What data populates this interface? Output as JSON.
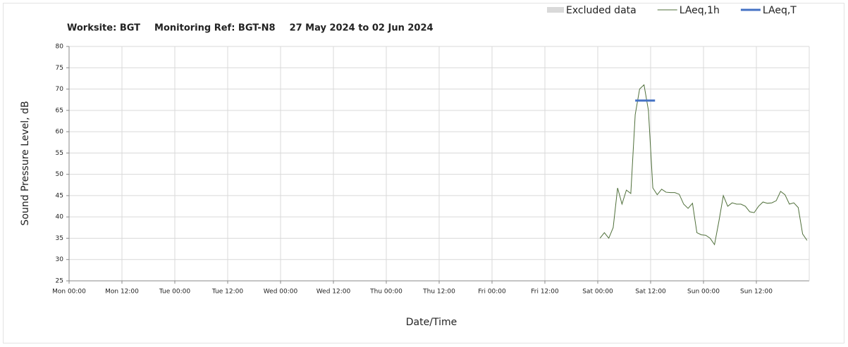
{
  "chart_data": {
    "type": "line",
    "title_parts": [
      "Worksite: BGT",
      "Monitoring Ref: BGT-N8",
      "27 May 2024 to 02 Jun 2024"
    ],
    "xlabel": "Date/Time",
    "ylabel": "Sound Pressure Level, dB",
    "xlim": [
      0,
      168
    ],
    "ylim": [
      25,
      80
    ],
    "xticks": [
      {
        "value": 0,
        "label": "Mon 00:00"
      },
      {
        "value": 12,
        "label": "Mon 12:00"
      },
      {
        "value": 24,
        "label": "Tue 00:00"
      },
      {
        "value": 36,
        "label": "Tue 12:00"
      },
      {
        "value": 48,
        "label": "Wed 00:00"
      },
      {
        "value": 60,
        "label": "Wed 12:00"
      },
      {
        "value": 72,
        "label": "Thu 00:00"
      },
      {
        "value": 84,
        "label": "Thu 12:00"
      },
      {
        "value": 96,
        "label": "Fri 00:00"
      },
      {
        "value": 108,
        "label": "Fri 12:00"
      },
      {
        "value": 120,
        "label": "Sat 00:00"
      },
      {
        "value": 132,
        "label": "Sat 12:00"
      },
      {
        "value": 144,
        "label": "Sun 00:00"
      },
      {
        "value": 156,
        "label": "Sun 12:00"
      }
    ],
    "yticks": [
      25,
      30,
      35,
      40,
      45,
      50,
      55,
      60,
      65,
      70,
      75,
      80
    ],
    "grid": true,
    "series": [
      {
        "name": "Excluded data",
        "color": "#d9d9d9",
        "kind": "area",
        "x": [],
        "values": []
      },
      {
        "name": "LAeq,1h",
        "color": "#4f6f3a",
        "kind": "line",
        "x": [
          120.5,
          121.5,
          122.5,
          123.5,
          124.5,
          125.5,
          126.5,
          127.5,
          128.5,
          129.5,
          130.5,
          131.5,
          132.5,
          133.5,
          134.5,
          135.5,
          136.5,
          137.5,
          138.5,
          139.5,
          140.5,
          141.5,
          142.5,
          143.5,
          144.5,
          145.5,
          146.5,
          147.5,
          148.5,
          149.5,
          150.5,
          151.5,
          152.5,
          153.5,
          154.5,
          155.5,
          156.5,
          157.5,
          158.5,
          159.5,
          160.5,
          161.5,
          162.5,
          163.5,
          164.5,
          165.5,
          166.5,
          167.5
        ],
        "values": [
          35,
          36.3,
          35,
          37.5,
          46.8,
          43,
          46.3,
          45.5,
          64,
          70,
          71,
          65,
          46.8,
          45.2,
          46.5,
          45.8,
          45.7,
          45.7,
          45.3,
          43,
          42,
          43.2,
          36.3,
          35.8,
          35.7,
          35,
          33.5,
          39,
          45,
          42.5,
          43.3,
          43,
          43,
          42.5,
          41.2,
          41,
          42.5,
          43.5,
          43.2,
          43.3,
          43.8,
          46,
          45.2,
          43,
          43.3,
          42.2,
          36,
          34.5
        ]
      },
      {
        "name": "LAeq,T",
        "color": "#4472c4",
        "kind": "level",
        "x": [
          128.5,
          133
        ],
        "values": [
          67.3,
          67.3
        ]
      }
    ]
  }
}
